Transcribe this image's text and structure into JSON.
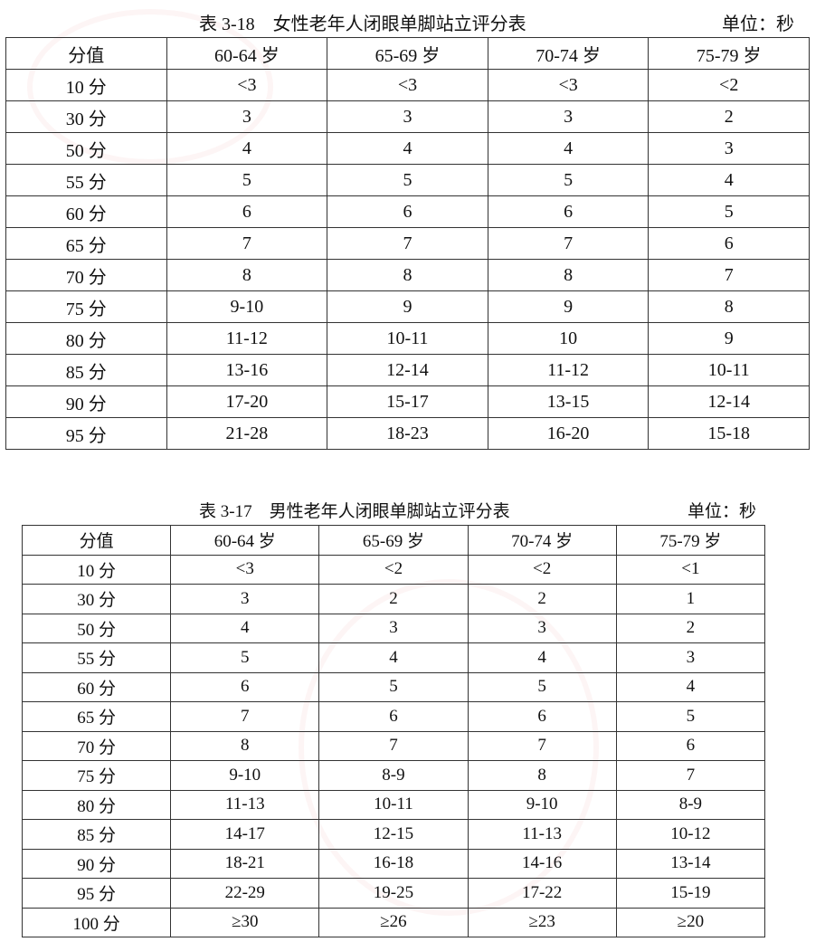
{
  "tables": [
    {
      "caption": "表 3-18　女性老年人闭眼单脚站立评分表",
      "unit": "单位：秒",
      "headers": [
        "分值",
        "60-64 岁",
        "65-69 岁",
        "70-74 岁",
        "75-79 岁"
      ],
      "rows": [
        [
          "10 分",
          "<3",
          "<3",
          "<3",
          "<2"
        ],
        [
          "30 分",
          "3",
          "3",
          "3",
          "2"
        ],
        [
          "50 分",
          "4",
          "4",
          "4",
          "3"
        ],
        [
          "55 分",
          "5",
          "5",
          "5",
          "4"
        ],
        [
          "60 分",
          "6",
          "6",
          "6",
          "5"
        ],
        [
          "65 分",
          "7",
          "7",
          "7",
          "6"
        ],
        [
          "70 分",
          "8",
          "8",
          "8",
          "7"
        ],
        [
          "75 分",
          "9-10",
          "9",
          "9",
          "8"
        ],
        [
          "80 分",
          "11-12",
          "10-11",
          "10",
          "9"
        ],
        [
          "85 分",
          "13-16",
          "12-14",
          "11-12",
          "10-11"
        ],
        [
          "90 分",
          "17-20",
          "15-17",
          "13-15",
          "12-14"
        ],
        [
          "95 分",
          "21-28",
          "18-23",
          "16-20",
          "15-18"
        ]
      ]
    },
    {
      "caption": "表 3-17　男性老年人闭眼单脚站立评分表",
      "unit": "单位：秒",
      "headers": [
        "分值",
        "60-64 岁",
        "65-69 岁",
        "70-74 岁",
        "75-79 岁"
      ],
      "rows": [
        [
          "10 分",
          "<3",
          "<2",
          "<2",
          "<1"
        ],
        [
          "30 分",
          "3",
          "2",
          "2",
          "1"
        ],
        [
          "50 分",
          "4",
          "3",
          "3",
          "2"
        ],
        [
          "55 分",
          "5",
          "4",
          "4",
          "3"
        ],
        [
          "60 分",
          "6",
          "5",
          "5",
          "4"
        ],
        [
          "65 分",
          "7",
          "6",
          "6",
          "5"
        ],
        [
          "70 分",
          "8",
          "7",
          "7",
          "6"
        ],
        [
          "75 分",
          "9-10",
          "8-9",
          "8",
          "7"
        ],
        [
          "80 分",
          "11-13",
          "10-11",
          "9-10",
          "8-9"
        ],
        [
          "85 分",
          "14-17",
          "12-15",
          "11-13",
          "10-12"
        ],
        [
          "90 分",
          "18-21",
          "16-18",
          "14-16",
          "13-14"
        ],
        [
          "95 分",
          "22-29",
          "19-25",
          "17-22",
          "15-19"
        ],
        [
          "100 分",
          "≥30",
          "≥26",
          "≥23",
          "≥20"
        ]
      ]
    }
  ]
}
